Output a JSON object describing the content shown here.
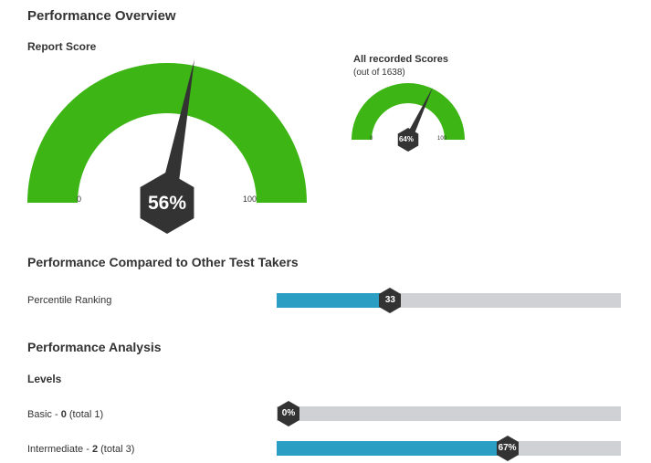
{
  "overview": {
    "title": "Performance Overview",
    "report_score_label": "Report Score"
  },
  "main_gauge": {
    "value_pct": 56,
    "value_text": "56%",
    "min_label": "0",
    "max_label": "100",
    "fill_color": "#3cb515",
    "needle_color": "#333333"
  },
  "all_scores_gauge": {
    "title": "All recorded Scores",
    "subtitle": "(out of 1638)",
    "value_pct": 64,
    "value_text": "64%",
    "min_label": "0",
    "max_label": "100"
  },
  "comparison": {
    "title": "Performance Compared to Other Test Takers",
    "percentile_label": "Percentile Ranking",
    "percentile_value": 33,
    "percentile_text": "33"
  },
  "analysis": {
    "title": "Performance Analysis",
    "levels_label": "Levels",
    "levels": [
      {
        "name": "Basic",
        "score": "0",
        "total_text": "(total 1)",
        "value_pct": 0,
        "value_text": "0%"
      },
      {
        "name": "Intermediate",
        "score": "2",
        "total_text": "(total 3)",
        "value_pct": 67,
        "value_text": "67%"
      }
    ]
  },
  "colors": {
    "bar_fill": "#2b9ec3",
    "bar_track": "#cfd1d4",
    "marker": "#333333"
  }
}
